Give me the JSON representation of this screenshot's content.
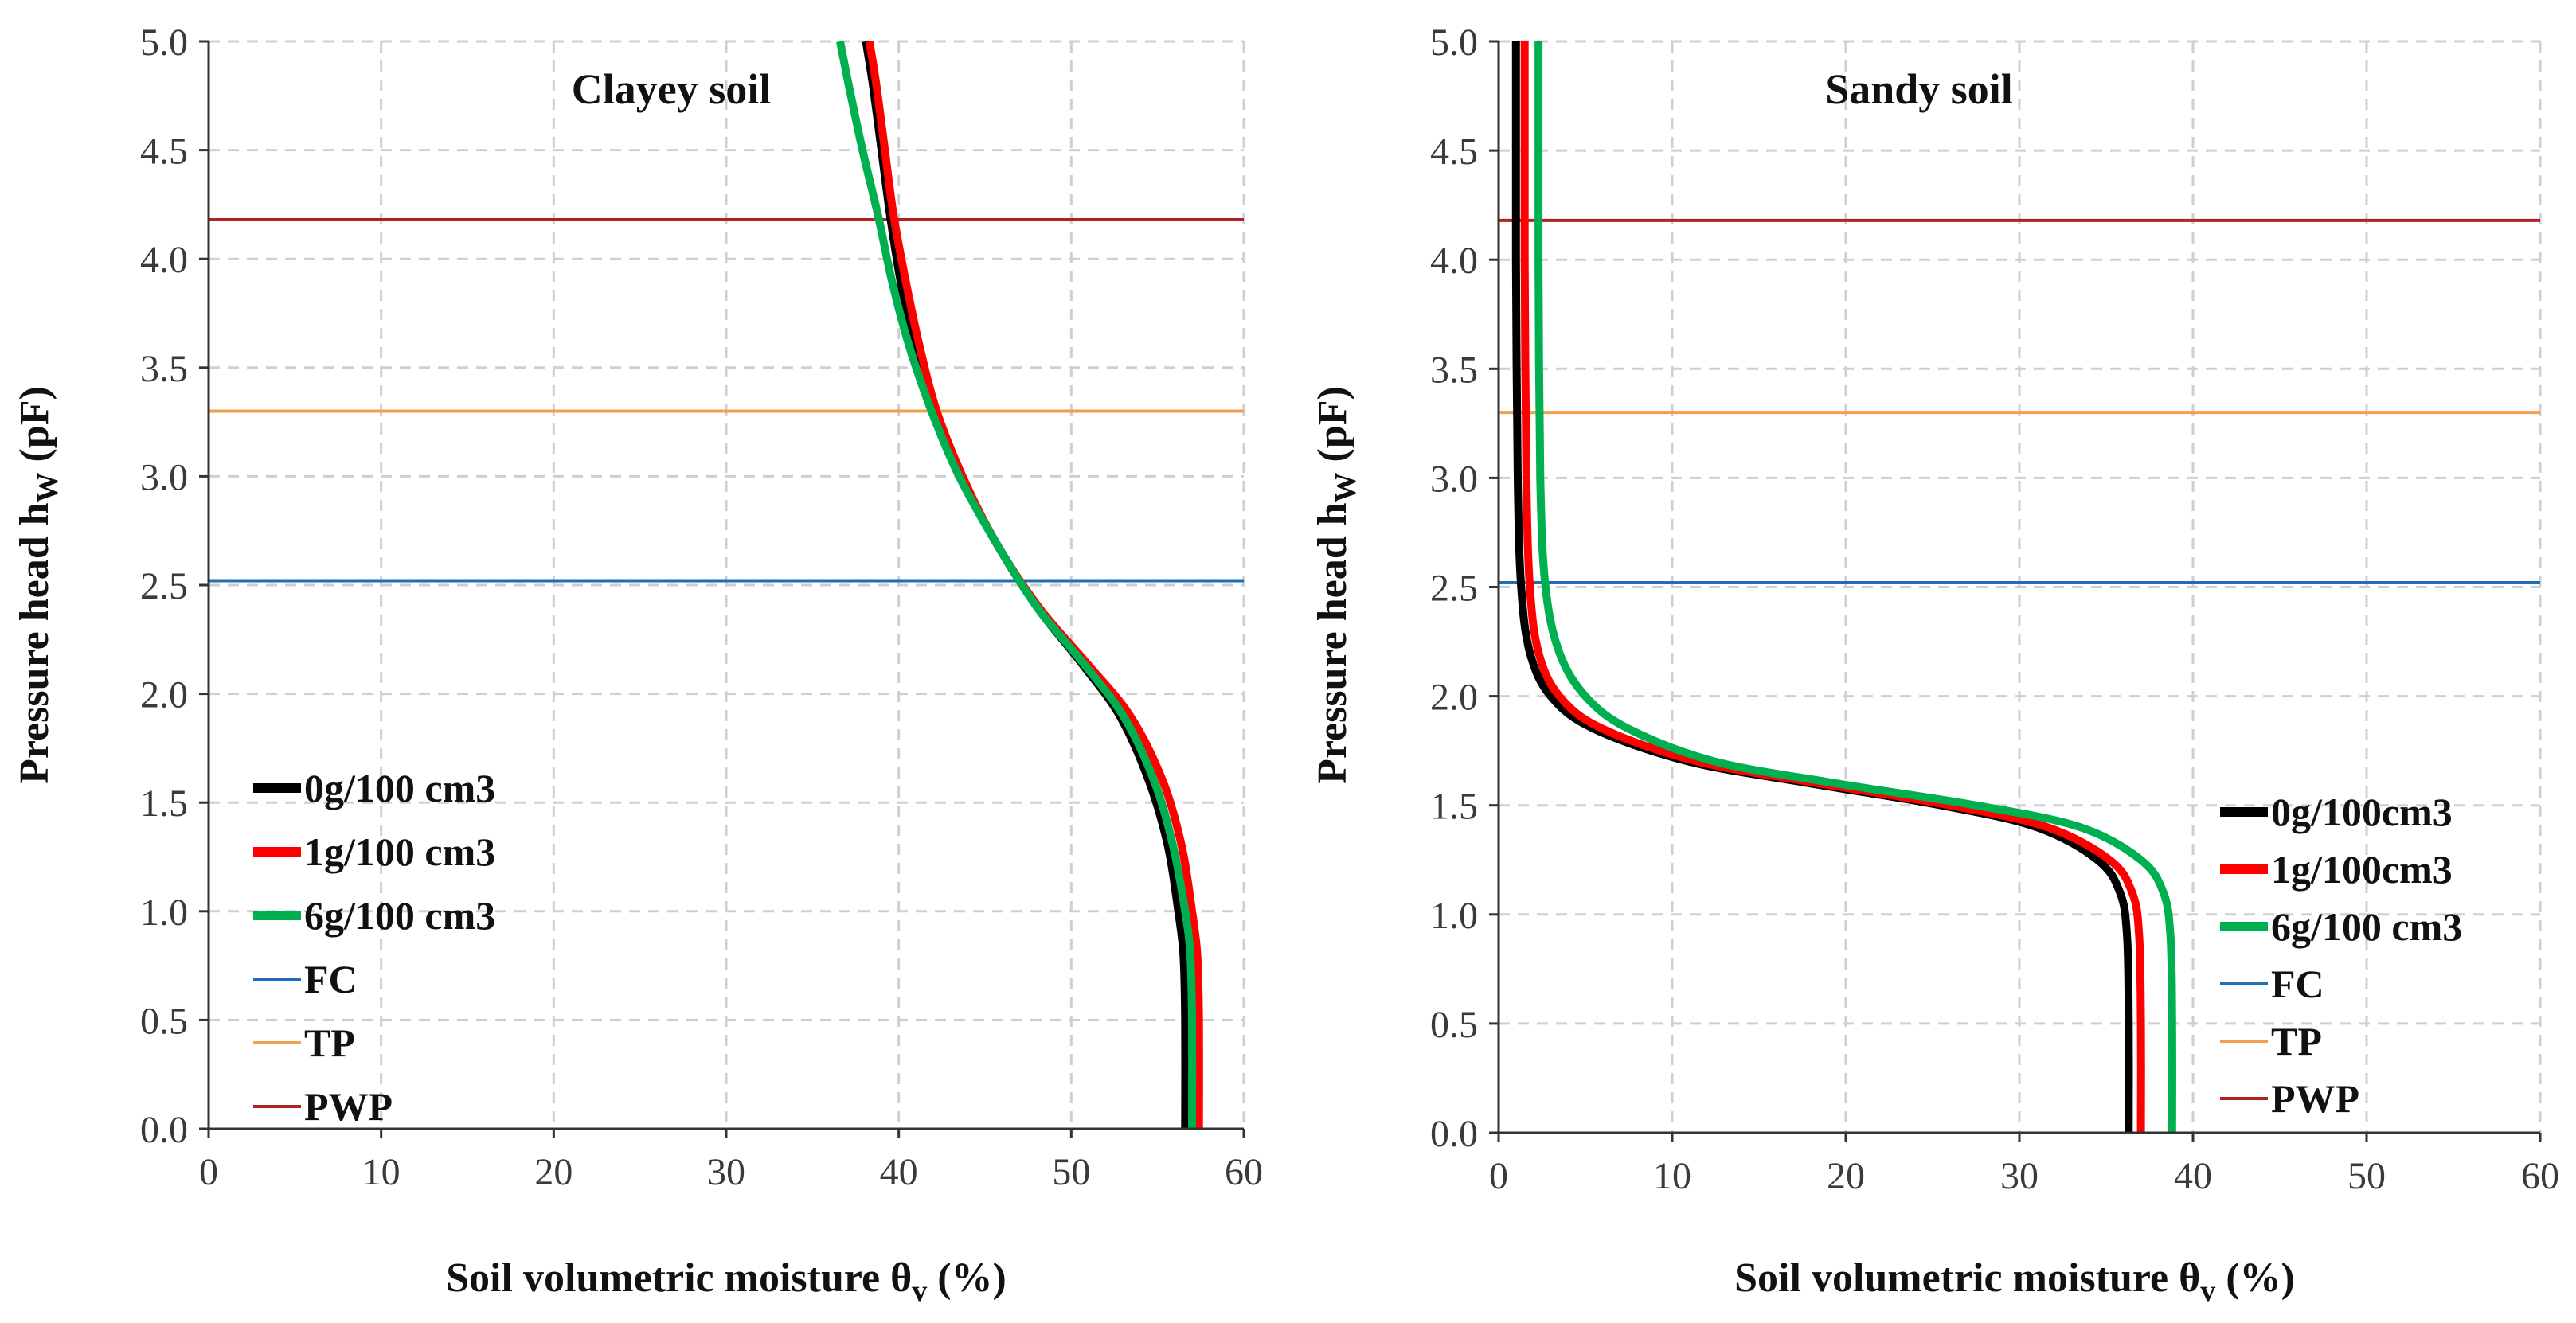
{
  "chart_data": [
    {
      "type": "line",
      "title": "Clayey soil",
      "xlabel": "Soil volumetric moisture θ",
      "xlabel_sub": "v",
      "xlabel_unit": " (%)",
      "ylabel": "Pressure head h",
      "ylabel_sub": "W",
      "ylabel_unit": " (pF)",
      "xlim": [
        0,
        60
      ],
      "ylim": [
        0,
        5
      ],
      "xticks": [
        "0",
        "10",
        "20",
        "30",
        "40",
        "50",
        "60"
      ],
      "yticks": [
        "0.0",
        "0.5",
        "1.0",
        "1.5",
        "2.0",
        "2.5",
        "3.0",
        "3.5",
        "4.0",
        "4.5",
        "5.0"
      ],
      "grid": true,
      "legend_position": "bottom-left",
      "series": [
        {
          "name": "0g/100 cm3",
          "color": "#000000",
          "kind": "curve",
          "x": [
            56.6,
            56.6,
            56.5,
            56.2,
            55.6,
            54.5,
            52.8,
            50.5,
            48.0,
            45.6,
            43.6,
            42.0,
            40.9,
            40.1,
            39.5,
            39.0,
            38.5,
            38.1
          ],
          "y": [
            0.0,
            0.5,
            0.8,
            1.0,
            1.3,
            1.6,
            1.9,
            2.15,
            2.4,
            2.7,
            3.0,
            3.3,
            3.6,
            3.9,
            4.2,
            4.5,
            4.8,
            5.0
          ]
        },
        {
          "name": "1g/100 cm3",
          "color": "#ff0000",
          "kind": "curve",
          "x": [
            57.4,
            57.4,
            57.3,
            57.0,
            56.4,
            55.3,
            53.4,
            50.8,
            48.1,
            45.6,
            43.7,
            42.2,
            41.2,
            40.4,
            39.7,
            39.2,
            38.7,
            38.3
          ],
          "y": [
            0.0,
            0.5,
            0.8,
            1.0,
            1.3,
            1.6,
            1.9,
            2.15,
            2.4,
            2.7,
            3.0,
            3.3,
            3.6,
            3.9,
            4.2,
            4.5,
            4.8,
            5.0
          ]
        },
        {
          "name": "6g/100 cm3",
          "color": "#00b050",
          "kind": "curve",
          "x": [
            57.0,
            57.0,
            56.9,
            56.6,
            55.9,
            54.8,
            53.0,
            50.6,
            48.0,
            45.6,
            43.5,
            41.9,
            40.6,
            39.6,
            38.8,
            37.9,
            37.1,
            36.6
          ],
          "y": [
            0.0,
            0.5,
            0.8,
            1.0,
            1.3,
            1.6,
            1.9,
            2.15,
            2.4,
            2.7,
            3.0,
            3.3,
            3.6,
            3.9,
            4.2,
            4.5,
            4.8,
            5.0
          ]
        },
        {
          "name": "FC",
          "color": "#1f6fb5",
          "kind": "hline",
          "y": 2.52
        },
        {
          "name": "TP",
          "color": "#f0a04b",
          "kind": "hline",
          "y": 3.3
        },
        {
          "name": "PWP",
          "color": "#b22222",
          "kind": "hline",
          "y": 4.18
        }
      ]
    },
    {
      "type": "line",
      "title": "Sandy soil",
      "xlabel": "Soil volumetric moisture θ",
      "xlabel_sub": "v",
      "xlabel_unit": " (%)",
      "ylabel": "Pressure head h",
      "ylabel_sub": "W",
      "ylabel_unit": " (pF)",
      "xlim": [
        0,
        60
      ],
      "ylim": [
        0,
        5
      ],
      "xticks": [
        "0",
        "10",
        "20",
        "30",
        "40",
        "50",
        "60"
      ],
      "yticks": [
        "0.0",
        "0.5",
        "1.0",
        "1.5",
        "2.0",
        "2.5",
        "3.0",
        "3.5",
        "4.0",
        "4.5",
        "5.0"
      ],
      "grid": true,
      "legend_position": "bottom-right",
      "series": [
        {
          "name": "0g/100cm3",
          "color": "#000000",
          "kind": "curve",
          "x": [
            36.3,
            36.3,
            36.2,
            35.8,
            34.5,
            31.0,
            25.5,
            18.0,
            11.0,
            5.5,
            3.0,
            1.8,
            1.3,
            1.1,
            1.0,
            1.0,
            1.0
          ],
          "y": [
            0.0,
            0.5,
            0.9,
            1.1,
            1.25,
            1.4,
            1.5,
            1.6,
            1.7,
            1.85,
            2.0,
            2.2,
            2.5,
            3.0,
            4.0,
            4.6,
            5.0
          ]
        },
        {
          "name": "1g/100cm3",
          "color": "#ff0000",
          "kind": "curve",
          "x": [
            37.0,
            37.0,
            36.9,
            36.5,
            35.2,
            31.6,
            26.0,
            18.5,
            11.5,
            6.0,
            3.5,
            2.3,
            1.8,
            1.6,
            1.5,
            1.5,
            1.5
          ],
          "y": [
            0.0,
            0.5,
            0.9,
            1.1,
            1.25,
            1.4,
            1.5,
            1.6,
            1.7,
            1.85,
            2.0,
            2.2,
            2.5,
            3.0,
            4.0,
            4.6,
            5.0
          ]
        },
        {
          "name": "6g/100 cm3",
          "color": "#00b050",
          "kind": "curve",
          "x": [
            38.8,
            38.8,
            38.7,
            38.3,
            37.0,
            33.5,
            27.5,
            19.5,
            12.5,
            7.5,
            5.0,
            3.5,
            2.7,
            2.4,
            2.3,
            2.3,
            2.3
          ],
          "y": [
            0.0,
            0.5,
            0.9,
            1.1,
            1.25,
            1.4,
            1.5,
            1.6,
            1.7,
            1.85,
            2.0,
            2.2,
            2.5,
            3.0,
            4.0,
            4.6,
            5.0
          ]
        },
        {
          "name": "FC",
          "color": "#1f6fb5",
          "kind": "hline",
          "y": 2.52
        },
        {
          "name": "TP",
          "color": "#f0a04b",
          "kind": "hline",
          "y": 3.3
        },
        {
          "name": "PWP",
          "color": "#b22222",
          "kind": "hline",
          "y": 4.18
        }
      ]
    }
  ]
}
